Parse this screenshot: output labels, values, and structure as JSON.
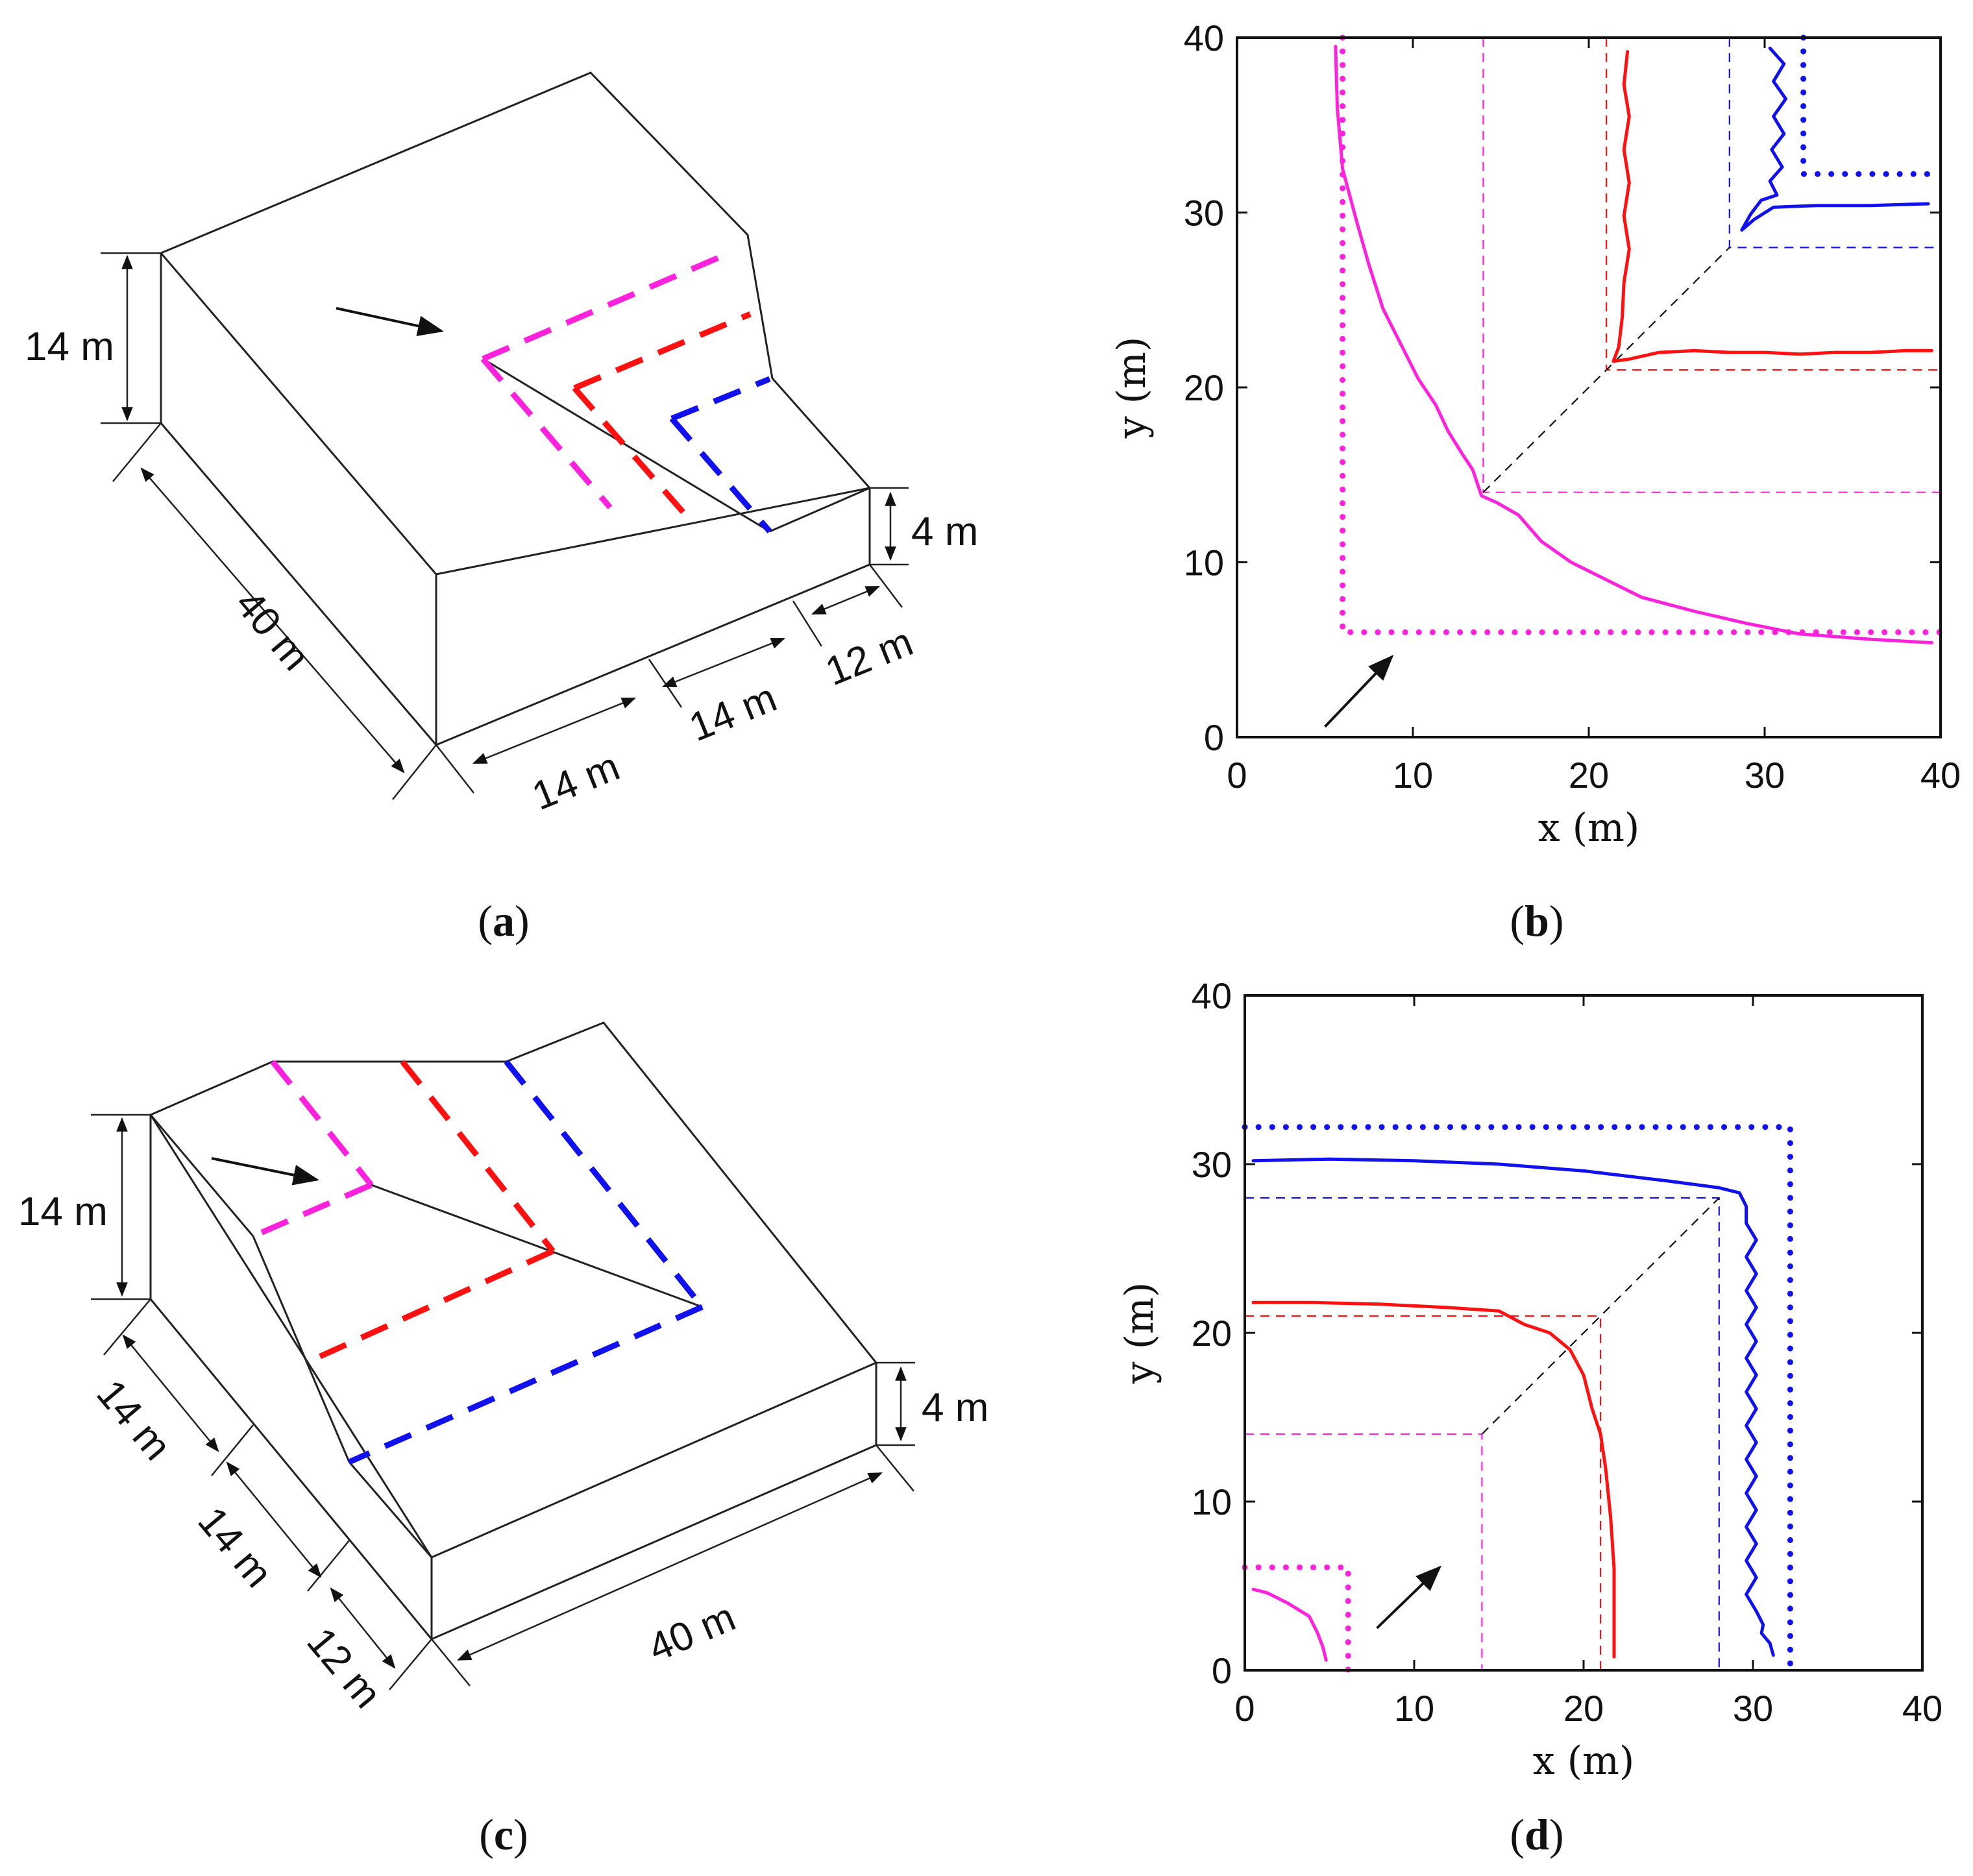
{
  "colors": {
    "magenta": "#ff22dd",
    "red": "#ff1111",
    "blue": "#1111ee",
    "black": "#111111"
  },
  "panel_a": {
    "dims": {
      "height_top": "14 m",
      "depth": "40 m",
      "step_height": "4 m",
      "seg1": "14 m",
      "seg2": "14 m",
      "seg3": "12 m"
    },
    "caption": {
      "open": "(",
      "letter": "a",
      "close": ")"
    }
  },
  "panel_c": {
    "dims": {
      "height_top": "14 m",
      "seg1": "14 m",
      "seg2": "14 m",
      "seg3": "12 m",
      "step_height": "4 m",
      "length": "40 m"
    },
    "caption": {
      "open": "(",
      "letter": "c",
      "close": ")"
    }
  },
  "chart_data": [
    {
      "panel": "b",
      "type": "line",
      "xlabel": "x (m)",
      "ylabel": "y (m)",
      "xlim": [
        0,
        40
      ],
      "ylim": [
        0,
        40
      ],
      "xticks": [
        "0",
        "10",
        "20",
        "30",
        "40"
      ],
      "yticks": [
        "0",
        "10",
        "20",
        "30",
        "40"
      ],
      "caption": {
        "open": "(",
        "letter": "b",
        "close": ")"
      },
      "series": [
        {
          "name": "magenta trajectory",
          "color": "magenta",
          "style": "solid",
          "points": [
            [
              5.6,
              39.5
            ],
            [
              5.7,
              36
            ],
            [
              6,
              32.5
            ],
            [
              6.8,
              29.5
            ],
            [
              7.5,
              27
            ],
            [
              8.3,
              24.5
            ],
            [
              9.3,
              22.5
            ],
            [
              10.3,
              20.5
            ],
            [
              11.3,
              19
            ],
            [
              12,
              17.5
            ],
            [
              12.8,
              16.2
            ],
            [
              13.4,
              15.3
            ],
            [
              13.9,
              13.8
            ],
            [
              14.8,
              13.4
            ],
            [
              16,
              12.7
            ],
            [
              17.3,
              11.2
            ],
            [
              19,
              10
            ],
            [
              21,
              9
            ],
            [
              23,
              8
            ],
            [
              26,
              7.2
            ],
            [
              29,
              6.5
            ],
            [
              32,
              5.9
            ],
            [
              36,
              5.6
            ],
            [
              39.5,
              5.4
            ]
          ]
        },
        {
          "name": "red trajectory",
          "color": "red",
          "style": "solid",
          "points": [
            [
              22.2,
              39.2
            ],
            [
              22,
              37.3
            ],
            [
              22.3,
              35.5
            ],
            [
              22,
              33.6
            ],
            [
              22.3,
              31.7
            ],
            [
              22,
              29.8
            ],
            [
              22.3,
              27.9
            ],
            [
              22,
              26
            ],
            [
              21.9,
              24
            ],
            [
              21.7,
              22.3
            ],
            [
              21.4,
              21.5
            ],
            [
              22.2,
              21.6
            ],
            [
              24,
              22
            ],
            [
              26,
              22.1
            ],
            [
              28,
              22
            ],
            [
              30,
              22
            ],
            [
              32,
              21.9
            ],
            [
              34,
              22
            ],
            [
              36,
              22
            ],
            [
              38,
              22.1
            ],
            [
              39.5,
              22.1
            ]
          ]
        },
        {
          "name": "blue trajectory",
          "color": "blue",
          "style": "solid",
          "points": [
            [
              30.3,
              39.4
            ],
            [
              31.1,
              38.5
            ],
            [
              30.5,
              37.5
            ],
            [
              31.2,
              36.5
            ],
            [
              30.5,
              35.5
            ],
            [
              31.1,
              34.5
            ],
            [
              30.4,
              33.6
            ],
            [
              31,
              32.6
            ],
            [
              30.3,
              31.8
            ],
            [
              30.7,
              31
            ],
            [
              29.8,
              30.7
            ],
            [
              29.2,
              29.9
            ],
            [
              28.7,
              29
            ],
            [
              29.4,
              29.6
            ],
            [
              30.5,
              30.3
            ],
            [
              33,
              30.4
            ],
            [
              36,
              30.4
            ],
            [
              39.3,
              30.5
            ]
          ]
        },
        {
          "name": "magenta boundary",
          "color": "magenta",
          "style": "dotted",
          "points": [
            [
              6,
              40
            ],
            [
              6,
              6
            ],
            [
              40,
              6
            ]
          ]
        },
        {
          "name": "blue boundary",
          "color": "blue",
          "style": "dotted",
          "points": [
            [
              32.2,
              40
            ],
            [
              32.2,
              32.2
            ],
            [
              40,
              32.2
            ]
          ]
        },
        {
          "name": "magenta corner",
          "color": "magenta",
          "style": "dashed",
          "points": [
            [
              14,
              40
            ],
            [
              14,
              14
            ],
            [
              40,
              14
            ]
          ]
        },
        {
          "name": "red corner",
          "color": "red",
          "style": "dashed",
          "points": [
            [
              21,
              40
            ],
            [
              21,
              21
            ],
            [
              40,
              21
            ]
          ]
        },
        {
          "name": "blue corner",
          "color": "blue",
          "style": "dashed",
          "points": [
            [
              28,
              40
            ],
            [
              28,
              28
            ],
            [
              40,
              28
            ]
          ]
        },
        {
          "name": "diagonal",
          "color": "black",
          "style": "dashed",
          "points": [
            [
              14,
              14
            ],
            [
              28,
              28
            ]
          ]
        }
      ],
      "arrow": {
        "from": [
          5,
          0.6
        ],
        "to": [
          8.8,
          4.6
        ]
      }
    },
    {
      "panel": "d",
      "type": "line",
      "xlabel": "x (m)",
      "ylabel": "y (m)",
      "xlim": [
        0,
        40
      ],
      "ylim": [
        0,
        40
      ],
      "xticks": [
        "0",
        "10",
        "20",
        "30",
        "40"
      ],
      "yticks": [
        "0",
        "10",
        "20",
        "30",
        "40"
      ],
      "caption": {
        "open": "(",
        "letter": "d",
        "close": ")"
      },
      "series": [
        {
          "name": "magenta trajectory",
          "color": "magenta",
          "style": "solid",
          "points": [
            [
              0.5,
              4.8
            ],
            [
              1.3,
              4.6
            ],
            [
              2.5,
              4
            ],
            [
              3.8,
              3.2
            ],
            [
              4.3,
              2.2
            ],
            [
              4.6,
              1.4
            ],
            [
              4.8,
              0.6
            ]
          ]
        },
        {
          "name": "red trajectory",
          "color": "red",
          "style": "solid",
          "points": [
            [
              0.5,
              21.8
            ],
            [
              4,
              21.8
            ],
            [
              8,
              21.7
            ],
            [
              12,
              21.5
            ],
            [
              15,
              21.3
            ],
            [
              16.5,
              20.5
            ],
            [
              18,
              20
            ],
            [
              19.2,
              19
            ],
            [
              20,
              17.5
            ],
            [
              20.5,
              15.5
            ],
            [
              21,
              14
            ],
            [
              21.3,
              12
            ],
            [
              21.6,
              9
            ],
            [
              21.8,
              6
            ],
            [
              21.8,
              3
            ],
            [
              21.8,
              0.8
            ]
          ]
        },
        {
          "name": "blue trajectory",
          "color": "blue",
          "style": "solid",
          "points": [
            [
              0.5,
              30.2
            ],
            [
              5,
              30.3
            ],
            [
              10,
              30.2
            ],
            [
              15,
              30
            ],
            [
              20,
              29.6
            ],
            [
              25,
              29
            ],
            [
              28,
              28.6
            ],
            [
              29.2,
              28.3
            ],
            [
              29.6,
              27.5
            ],
            [
              29.6,
              26.5
            ],
            [
              30.2,
              25.5
            ],
            [
              29.6,
              24.5
            ],
            [
              30.2,
              23.5
            ],
            [
              29.6,
              22.5
            ],
            [
              30.2,
              21.5
            ],
            [
              29.6,
              20.5
            ],
            [
              30.2,
              19.5
            ],
            [
              29.6,
              18.5
            ],
            [
              30.2,
              17.5
            ],
            [
              29.6,
              16.5
            ],
            [
              30.2,
              15.5
            ],
            [
              29.6,
              14.5
            ],
            [
              30.2,
              13.5
            ],
            [
              29.6,
              12.5
            ],
            [
              30.2,
              11.5
            ],
            [
              29.6,
              10.5
            ],
            [
              30.2,
              9.5
            ],
            [
              29.6,
              8.5
            ],
            [
              30.2,
              7.5
            ],
            [
              29.6,
              6.5
            ],
            [
              30.2,
              5.5
            ],
            [
              29.6,
              4.5
            ],
            [
              30.2,
              3.5
            ],
            [
              30.6,
              2.7
            ],
            [
              30.5,
              2.2
            ],
            [
              31,
              1.6
            ],
            [
              31.2,
              0.9
            ]
          ]
        },
        {
          "name": "magenta boundary",
          "color": "magenta",
          "style": "dotted",
          "points": [
            [
              0,
              6.1
            ],
            [
              6.1,
              6.1
            ],
            [
              6.1,
              0
            ]
          ]
        },
        {
          "name": "blue boundary",
          "color": "blue",
          "style": "dotted",
          "points": [
            [
              0,
              32.2
            ],
            [
              32.2,
              32.2
            ],
            [
              32.2,
              0
            ]
          ]
        },
        {
          "name": "magenta corner",
          "color": "magenta",
          "style": "dashed",
          "points": [
            [
              0,
              14
            ],
            [
              14,
              14
            ],
            [
              14,
              0
            ]
          ]
        },
        {
          "name": "red corner",
          "color": "red",
          "style": "dashed",
          "points": [
            [
              0,
              21
            ],
            [
              21,
              21
            ],
            [
              21,
              0
            ]
          ]
        },
        {
          "name": "blue corner",
          "color": "blue",
          "style": "dashed",
          "points": [
            [
              0,
              28
            ],
            [
              28,
              28
            ],
            [
              28,
              0
            ]
          ]
        },
        {
          "name": "diagonal",
          "color": "black",
          "style": "dashed",
          "points": [
            [
              14,
              14
            ],
            [
              28,
              28
            ]
          ]
        }
      ],
      "arrow": {
        "from": [
          7.8,
          2.5
        ],
        "to": [
          11.5,
          6.1
        ]
      }
    }
  ]
}
